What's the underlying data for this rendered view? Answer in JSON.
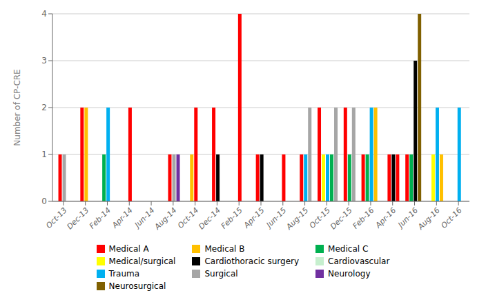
{
  "chart_data": {
    "type": "bar",
    "ylabel": "Number of CP-CRE",
    "ylim": [
      0,
      4
    ],
    "yticks": [
      0,
      1,
      2,
      3,
      4
    ],
    "grid": true,
    "categories": [
      "Oct-13",
      "Dec-13",
      "Feb-14",
      "Apr-14",
      "Jun-14",
      "Aug-14",
      "Oct-14",
      "Dec-14",
      "Feb-15",
      "Apr-15",
      "Jun-15",
      "Aug-15",
      "Oct-15",
      "Dec-15",
      "Feb-16",
      "Apr-16",
      "Jun-16",
      "Aug-16",
      "Oct-16"
    ],
    "series": [
      {
        "name": "Medical A",
        "color": "#FF0000"
      },
      {
        "name": "Medical B",
        "color": "#FFC000"
      },
      {
        "name": "Medical C",
        "color": "#00B050"
      },
      {
        "name": "Medical/surgical",
        "color": "#FFFF00"
      },
      {
        "name": "Cardiothoracic surgery",
        "color": "#000000"
      },
      {
        "name": "Cardiovascular",
        "color": "#C6EFCE"
      },
      {
        "name": "Trauma",
        "color": "#00B0F0"
      },
      {
        "name": "Surgical",
        "color": "#A6A6A6"
      },
      {
        "name": "Neurology",
        "color": "#7030A0"
      },
      {
        "name": "Neurosurgical",
        "color": "#806000"
      }
    ],
    "bars": [
      {
        "category": "Oct-13",
        "name": "Medical A",
        "value": 1
      },
      {
        "category": "Oct-13",
        "name": "Surgical",
        "value": 1
      },
      {
        "category": "Dec-13",
        "name": "Medical A",
        "value": 2
      },
      {
        "category": "Dec-13",
        "name": "Medical B",
        "value": 2
      },
      {
        "category": "Feb-14",
        "name": "Medical C",
        "value": 1
      },
      {
        "category": "Feb-14",
        "name": "Trauma",
        "value": 2
      },
      {
        "category": "Apr-14",
        "name": "Medical A",
        "value": 2
      },
      {
        "category": "Aug-14",
        "name": "Medical A",
        "value": 1
      },
      {
        "category": "Aug-14",
        "name": "Surgical",
        "value": 1
      },
      {
        "category": "Aug-14",
        "name": "Neurology",
        "value": 1
      },
      {
        "category": "Oct-14",
        "name": "Medical B",
        "value": 1
      },
      {
        "category": "Oct-14",
        "name": "Medical A",
        "value": 2
      },
      {
        "category": "Dec-14",
        "name": "Medical A",
        "value": 2
      },
      {
        "category": "Dec-14",
        "name": "Cardiothoracic surgery",
        "value": 1
      },
      {
        "category": "Feb-15",
        "name": "Medical A",
        "value": 4
      },
      {
        "category": "Apr-15",
        "name": "Medical A",
        "value": 1
      },
      {
        "category": "Apr-15",
        "name": "Cardiothoracic surgery",
        "value": 1
      },
      {
        "category": "Jun-15",
        "name": "Medical A",
        "value": 1
      },
      {
        "category": "Aug-15",
        "name": "Medical A",
        "value": 1
      },
      {
        "category": "Aug-15",
        "name": "Trauma",
        "value": 1
      },
      {
        "category": "Aug-15",
        "name": "Surgical",
        "value": 2
      },
      {
        "category": "Oct-15",
        "name": "Medical A",
        "value": 2
      },
      {
        "category": "Oct-15",
        "name": "Medical/surgical",
        "value": 1
      },
      {
        "category": "Oct-15",
        "name": "Trauma",
        "value": 1
      },
      {
        "category": "Oct-15",
        "name": "Medical C",
        "value": 1
      },
      {
        "category": "Oct-15",
        "name": "Surgical",
        "value": 2
      },
      {
        "category": "Dec-15",
        "name": "Medical A",
        "value": 2
      },
      {
        "category": "Dec-15",
        "name": "Medical C",
        "value": 1
      },
      {
        "category": "Dec-15",
        "name": "Surgical",
        "value": 2
      },
      {
        "category": "Feb-16",
        "name": "Medical A",
        "value": 1
      },
      {
        "category": "Feb-16",
        "name": "Medical C",
        "value": 1
      },
      {
        "category": "Feb-16",
        "name": "Trauma",
        "value": 2
      },
      {
        "category": "Feb-16",
        "name": "Medical B",
        "value": 2
      },
      {
        "category": "Apr-16",
        "name": "Medical A",
        "value": 1
      },
      {
        "category": "Apr-16",
        "name": "Cardiothoracic surgery",
        "value": 1
      },
      {
        "category": "Apr-16",
        "name": "Medical A",
        "value": 1
      },
      {
        "category": "Jun-16",
        "name": "Medical A",
        "value": 1
      },
      {
        "category": "Jun-16",
        "name": "Medical C",
        "value": 1
      },
      {
        "category": "Jun-16",
        "name": "Cardiothoracic surgery",
        "value": 3
      },
      {
        "category": "Jun-16",
        "name": "Neurosurgical",
        "value": 4
      },
      {
        "category": "Aug-16",
        "name": "Medical/surgical",
        "value": 1
      },
      {
        "category": "Aug-16",
        "name": "Trauma",
        "value": 2
      },
      {
        "category": "Aug-16",
        "name": "Medical B",
        "value": 1
      },
      {
        "category": "Oct-16",
        "name": "Trauma",
        "value": 2
      }
    ]
  }
}
